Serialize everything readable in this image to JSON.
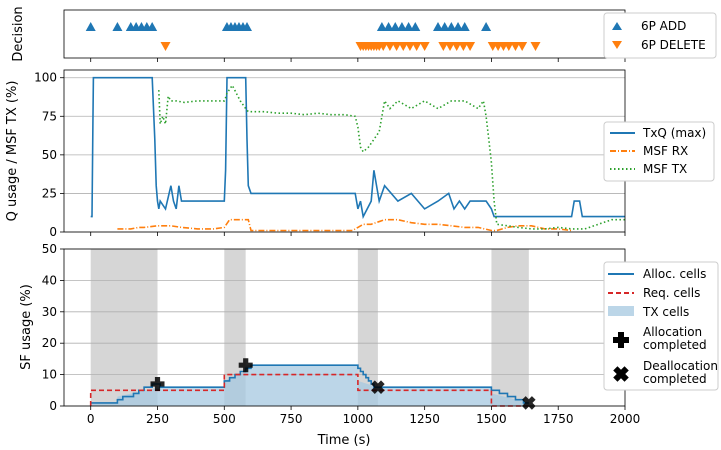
{
  "chart_data": [
    {
      "type": "scatter",
      "panel": "decision",
      "ylabel": "Decision",
      "xlim": [
        -100,
        2000
      ],
      "series": [
        {
          "name": "6P ADD",
          "marker": "triangle-up",
          "color": "#1f77b4",
          "x": [
            0,
            100,
            150,
            170,
            190,
            210,
            230,
            510,
            525,
            540,
            555,
            570,
            585,
            1090,
            1115,
            1140,
            1165,
            1190,
            1215,
            1300,
            1325,
            1350,
            1375,
            1400,
            1480
          ]
        },
        {
          "name": "6P DELETE",
          "marker": "triangle-down",
          "color": "#ff7f0e",
          "x": [
            280,
            1010,
            1020,
            1030,
            1040,
            1050,
            1060,
            1070,
            1080,
            1095,
            1120,
            1145,
            1170,
            1195,
            1220,
            1250,
            1320,
            1345,
            1370,
            1395,
            1420,
            1505,
            1525,
            1545,
            1565,
            1590,
            1615,
            1665
          ]
        }
      ]
    },
    {
      "type": "line",
      "panel": "queue",
      "ylabel": "Q usage / MSF TX (%)",
      "xlim": [
        -100,
        2000
      ],
      "ylim": [
        0,
        105
      ],
      "yticks": [
        0,
        25,
        50,
        75,
        100
      ],
      "grid": "y",
      "legend": "right",
      "series": [
        {
          "name": "TxQ (max)",
          "color": "#1f77b4",
          "style": "solid",
          "x": [
            0,
            5,
            8,
            10,
            15,
            230,
            240,
            245,
            250,
            255,
            260,
            280,
            300,
            310,
            320,
            330,
            340,
            360,
            380,
            400,
            420,
            440,
            460,
            480,
            500,
            505,
            510,
            580,
            585,
            590,
            600,
            620,
            650,
            700,
            750,
            800,
            850,
            900,
            950,
            990,
            1000,
            1010,
            1020,
            1050,
            1060,
            1080,
            1100,
            1150,
            1200,
            1250,
            1300,
            1340,
            1360,
            1380,
            1400,
            1420,
            1440,
            1460,
            1480,
            1500,
            1510,
            1800,
            1810,
            1830,
            1840,
            2000
          ],
          "y": [
            10,
            10,
            70,
            100,
            100,
            100,
            60,
            30,
            20,
            15,
            20,
            15,
            30,
            20,
            15,
            30,
            20,
            20,
            20,
            20,
            20,
            20,
            20,
            20,
            20,
            40,
            100,
            100,
            60,
            30,
            25,
            25,
            25,
            25,
            25,
            25,
            25,
            25,
            25,
            25,
            15,
            20,
            10,
            20,
            40,
            20,
            30,
            20,
            25,
            15,
            20,
            25,
            15,
            20,
            15,
            20,
            20,
            20,
            20,
            15,
            10,
            10,
            20,
            20,
            10,
            10
          ]
        },
        {
          "name": "MSF RX",
          "color": "#ff7f0e",
          "style": "dashdot",
          "x": [
            100,
            150,
            180,
            200,
            250,
            300,
            340,
            400,
            460,
            500,
            520,
            560,
            590,
            600,
            700,
            800,
            900,
            980,
            1000,
            1020,
            1050,
            1100,
            1150,
            1200,
            1250,
            1300,
            1350,
            1400,
            1450,
            1500,
            1520,
            1560,
            1600,
            1650,
            1700,
            1750,
            1800
          ],
          "y": [
            2,
            2,
            3,
            3,
            4,
            4,
            3,
            2,
            2,
            3,
            8,
            8,
            8,
            1,
            1,
            1,
            1,
            1,
            3,
            5,
            5,
            8,
            8,
            6,
            5,
            5,
            4,
            3,
            3,
            1,
            1,
            3,
            4,
            4,
            2,
            2,
            1
          ]
        },
        {
          "name": "MSF TX",
          "color": "#2ca02c",
          "style": "dotted",
          "x": [
            255,
            260,
            270,
            280,
            290,
            300,
            320,
            350,
            400,
            450,
            500,
            505,
            510,
            530,
            560,
            580,
            590,
            600,
            650,
            700,
            750,
            800,
            850,
            900,
            950,
            990,
            1000,
            1010,
            1020,
            1040,
            1060,
            1080,
            1090,
            1100,
            1120,
            1150,
            1200,
            1250,
            1300,
            1350,
            1400,
            1450,
            1470,
            1480,
            1490,
            1500,
            1510,
            1520,
            1560,
            1600,
            1650,
            1700,
            1750,
            1800,
            1850,
            1900,
            1950,
            2000
          ],
          "y": [
            92,
            70,
            75,
            70,
            88,
            85,
            85,
            84,
            85,
            85,
            85,
            87,
            90,
            95,
            85,
            80,
            78,
            78,
            78,
            77,
            77,
            76,
            77,
            76,
            76,
            75,
            68,
            55,
            52,
            55,
            60,
            65,
            75,
            85,
            80,
            85,
            80,
            85,
            80,
            85,
            85,
            80,
            85,
            75,
            60,
            45,
            20,
            5,
            4,
            3,
            2,
            2,
            3,
            2,
            2,
            5,
            8,
            8
          ]
        }
      ]
    },
    {
      "type": "line",
      "panel": "sf",
      "ylabel": "SF usage (%)",
      "xlabel": "Time (s)",
      "xlim": [
        -100,
        2000
      ],
      "ylim": [
        0,
        50
      ],
      "xticks": [
        0,
        250,
        500,
        750,
        1000,
        1250,
        1500,
        1750,
        2000
      ],
      "yticks": [
        0,
        10,
        20,
        30,
        40,
        50
      ],
      "grid": "y",
      "legend": "right",
      "shaded_intervals": [
        [
          0,
          250
        ],
        [
          500,
          580
        ],
        [
          1000,
          1075
        ],
        [
          1500,
          1640
        ]
      ],
      "series": [
        {
          "name": "Alloc. cells",
          "color": "#1f77b4",
          "style": "solid",
          "x": [
            0,
            100,
            100,
            120,
            120,
            140,
            140,
            160,
            160,
            180,
            180,
            200,
            200,
            230,
            230,
            260,
            260,
            500,
            500,
            520,
            520,
            540,
            540,
            560,
            560,
            580,
            580,
            600,
            600,
            1000,
            1000,
            1010,
            1010,
            1020,
            1020,
            1030,
            1030,
            1040,
            1040,
            1050,
            1050,
            1060,
            1060,
            1070,
            1070,
            1500,
            1500,
            1530,
            1530,
            1560,
            1560,
            1590,
            1590,
            1620,
            1620,
            1640,
            1640
          ],
          "y": [
            1,
            1,
            2,
            2,
            3,
            3,
            3,
            3,
            4,
            4,
            5,
            5,
            6,
            6,
            7,
            7,
            6,
            6,
            8,
            8,
            9,
            9,
            10,
            10,
            11,
            11,
            12,
            12,
            13,
            13,
            12,
            12,
            11,
            11,
            10,
            10,
            9,
            9,
            8,
            8,
            7,
            7,
            6,
            6,
            6,
            6,
            5,
            5,
            4,
            4,
            3,
            3,
            2,
            2,
            1,
            1,
            1
          ]
        },
        {
          "name": "Req. cells",
          "color": "#d62728",
          "style": "dashed",
          "x": [
            0,
            0,
            250,
            250,
            500,
            500,
            580,
            580,
            1000,
            1000,
            1075,
            1075,
            1500,
            1500,
            1640
          ],
          "y": [
            0,
            5,
            5,
            5,
            5,
            10,
            10,
            10,
            10,
            5,
            5,
            5,
            5,
            0,
            0
          ]
        },
        {
          "name": "TX cells",
          "color": "#a6c8e0",
          "style": "area",
          "x": [
            0,
            100,
            100,
            260,
            260,
            500,
            500,
            580,
            580,
            1000,
            1000,
            1075,
            1075,
            1500,
            1500,
            1640
          ],
          "y": [
            1,
            1,
            3,
            6,
            6,
            6,
            8,
            11,
            13,
            13,
            8,
            6,
            6,
            6,
            4,
            1
          ]
        }
      ],
      "markers": [
        {
          "name": "Allocation completed",
          "shape": "plus",
          "points": [
            [
              250,
              7
            ],
            [
              580,
              13
            ]
          ]
        },
        {
          "name": "Deallocation completed",
          "shape": "x",
          "points": [
            [
              1075,
              6
            ],
            [
              1640,
              1
            ]
          ]
        }
      ]
    }
  ]
}
